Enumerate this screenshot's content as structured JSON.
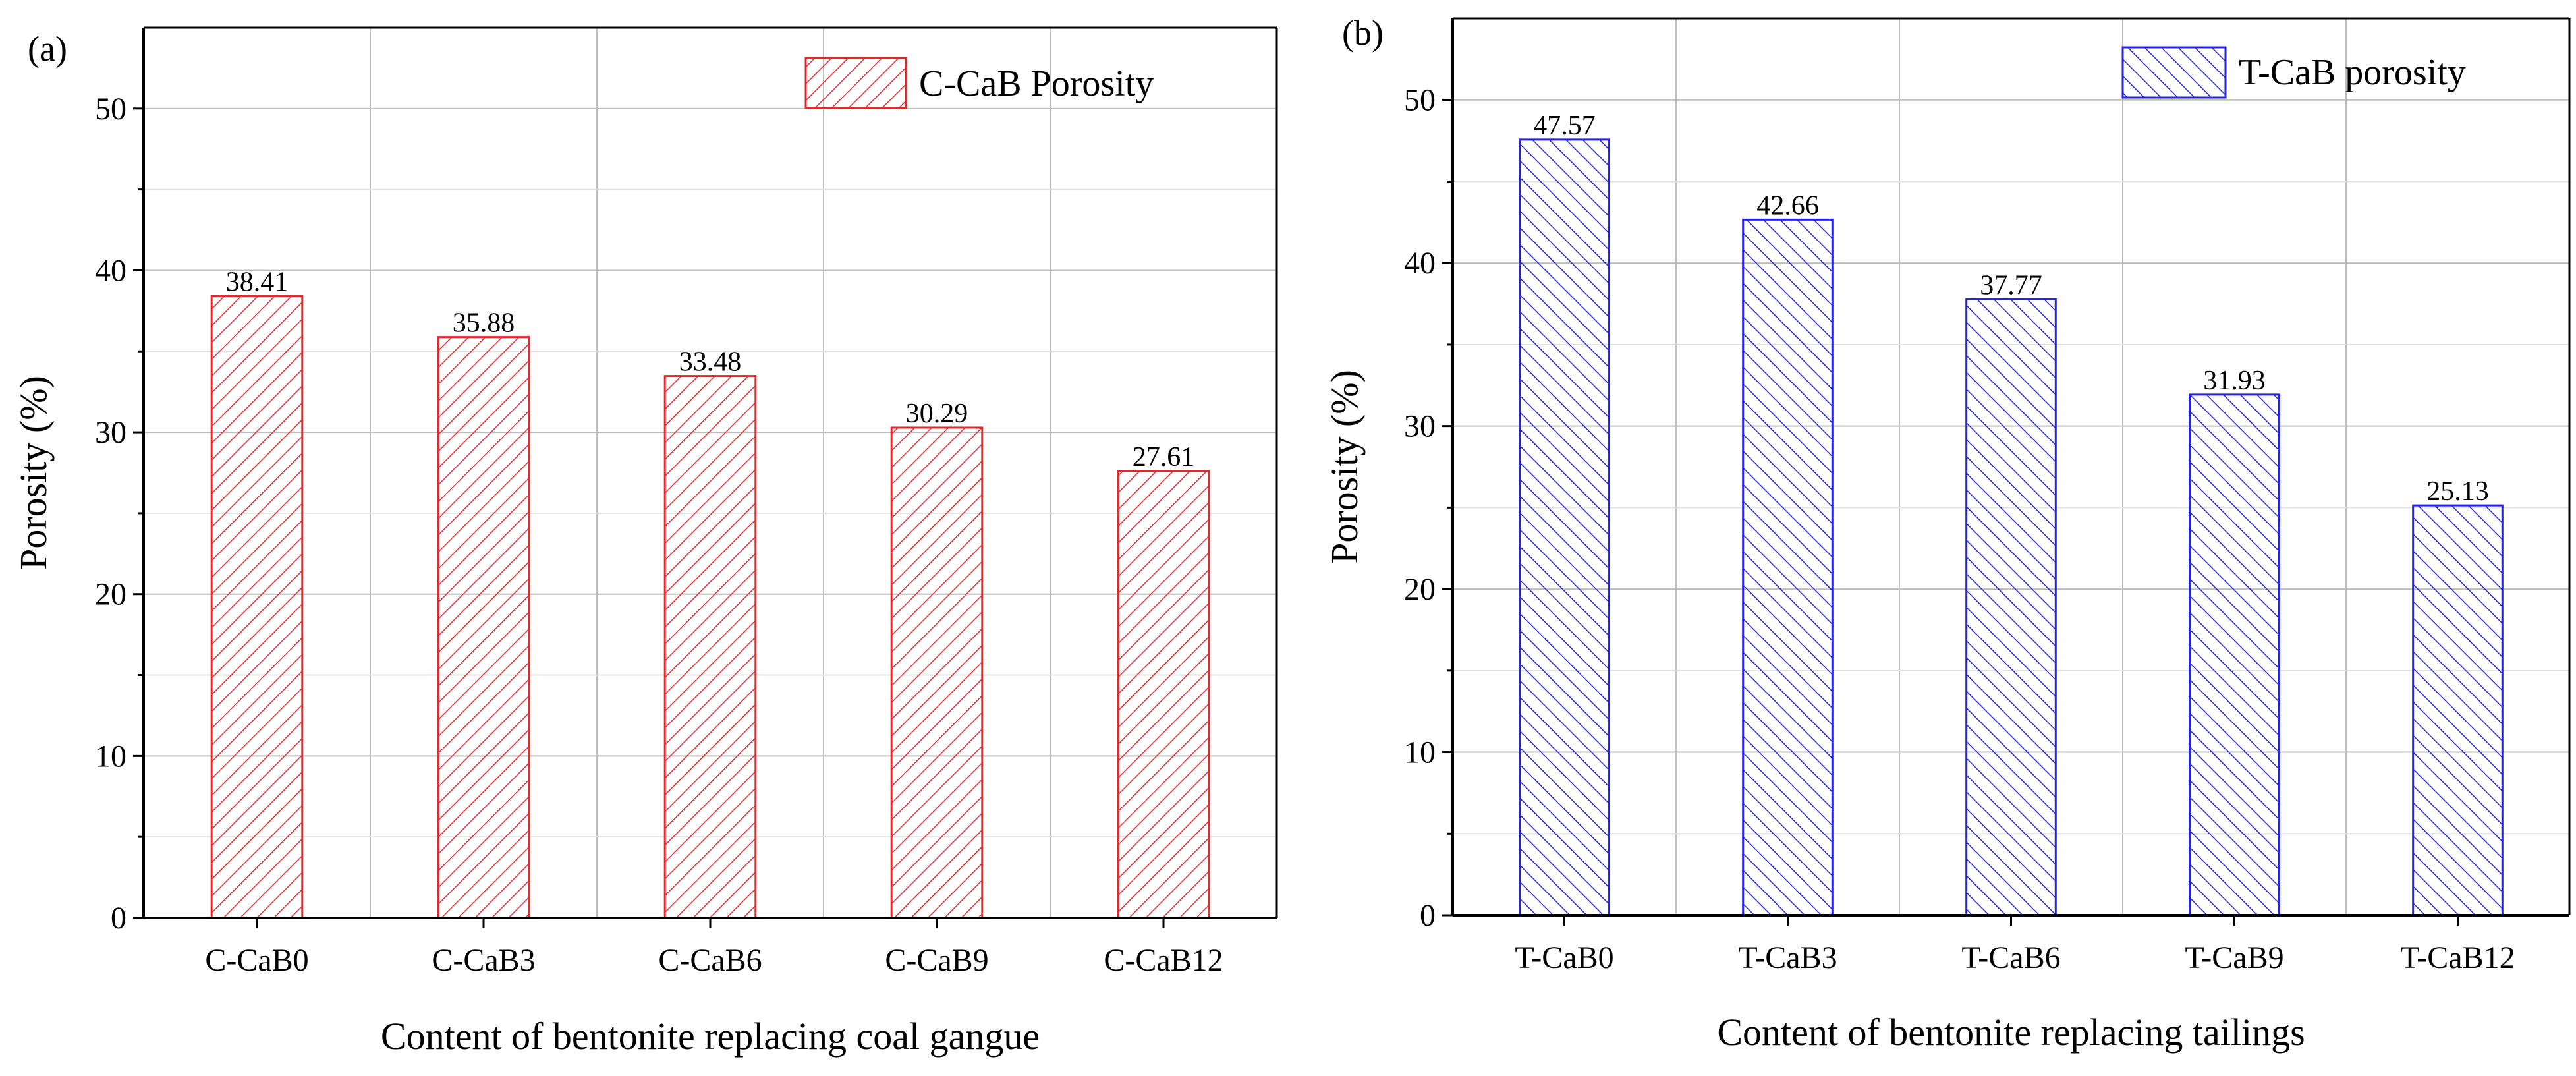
{
  "chart_data": [
    {
      "type": "bar",
      "panel_label": "(a)",
      "title": "",
      "categories": [
        "C-CaB0",
        "C-CaB3",
        "C-CaB6",
        "C-CaB9",
        "C-CaB12"
      ],
      "series": [
        {
          "name": "C-CaB Porosity",
          "values": [
            38.41,
            35.88,
            33.48,
            30.29,
            27.61
          ],
          "color": "#e8272a",
          "hatch": "forward"
        }
      ],
      "data_labels": [
        "38.41",
        "35.88",
        "33.48",
        "30.29",
        "27.61"
      ],
      "xlabel": "Content of bentonite replacing coal gangue",
      "ylabel": "Porosity (%)",
      "ylim": [
        0,
        55
      ],
      "yticks": [
        0,
        10,
        20,
        30,
        40,
        50
      ],
      "ytick_labels": [
        "0",
        "10",
        "20",
        "30",
        "40",
        "50"
      ],
      "grid": true,
      "legend": "top-right"
    },
    {
      "type": "bar",
      "panel_label": "(b)",
      "title": "",
      "categories": [
        "T-CaB0",
        "T-CaB3",
        "T-CaB6",
        "T-CaB9",
        "T-CaB12"
      ],
      "series": [
        {
          "name": "T-CaB porosity",
          "values": [
            47.57,
            42.66,
            37.77,
            31.93,
            25.13
          ],
          "color": "#2323e6",
          "hatch": "backward"
        }
      ],
      "data_labels": [
        "47.57",
        "42.66",
        "37.77",
        "31.93",
        "25.13"
      ],
      "xlabel": "Content of bentonite replacing tailings",
      "ylabel": "Porosity (%)",
      "ylim": [
        0,
        55
      ],
      "yticks": [
        0,
        10,
        20,
        30,
        40,
        50
      ],
      "ytick_labels": [
        "0",
        "10",
        "20",
        "30",
        "40",
        "50"
      ],
      "grid": true,
      "legend": "top-right"
    }
  ]
}
